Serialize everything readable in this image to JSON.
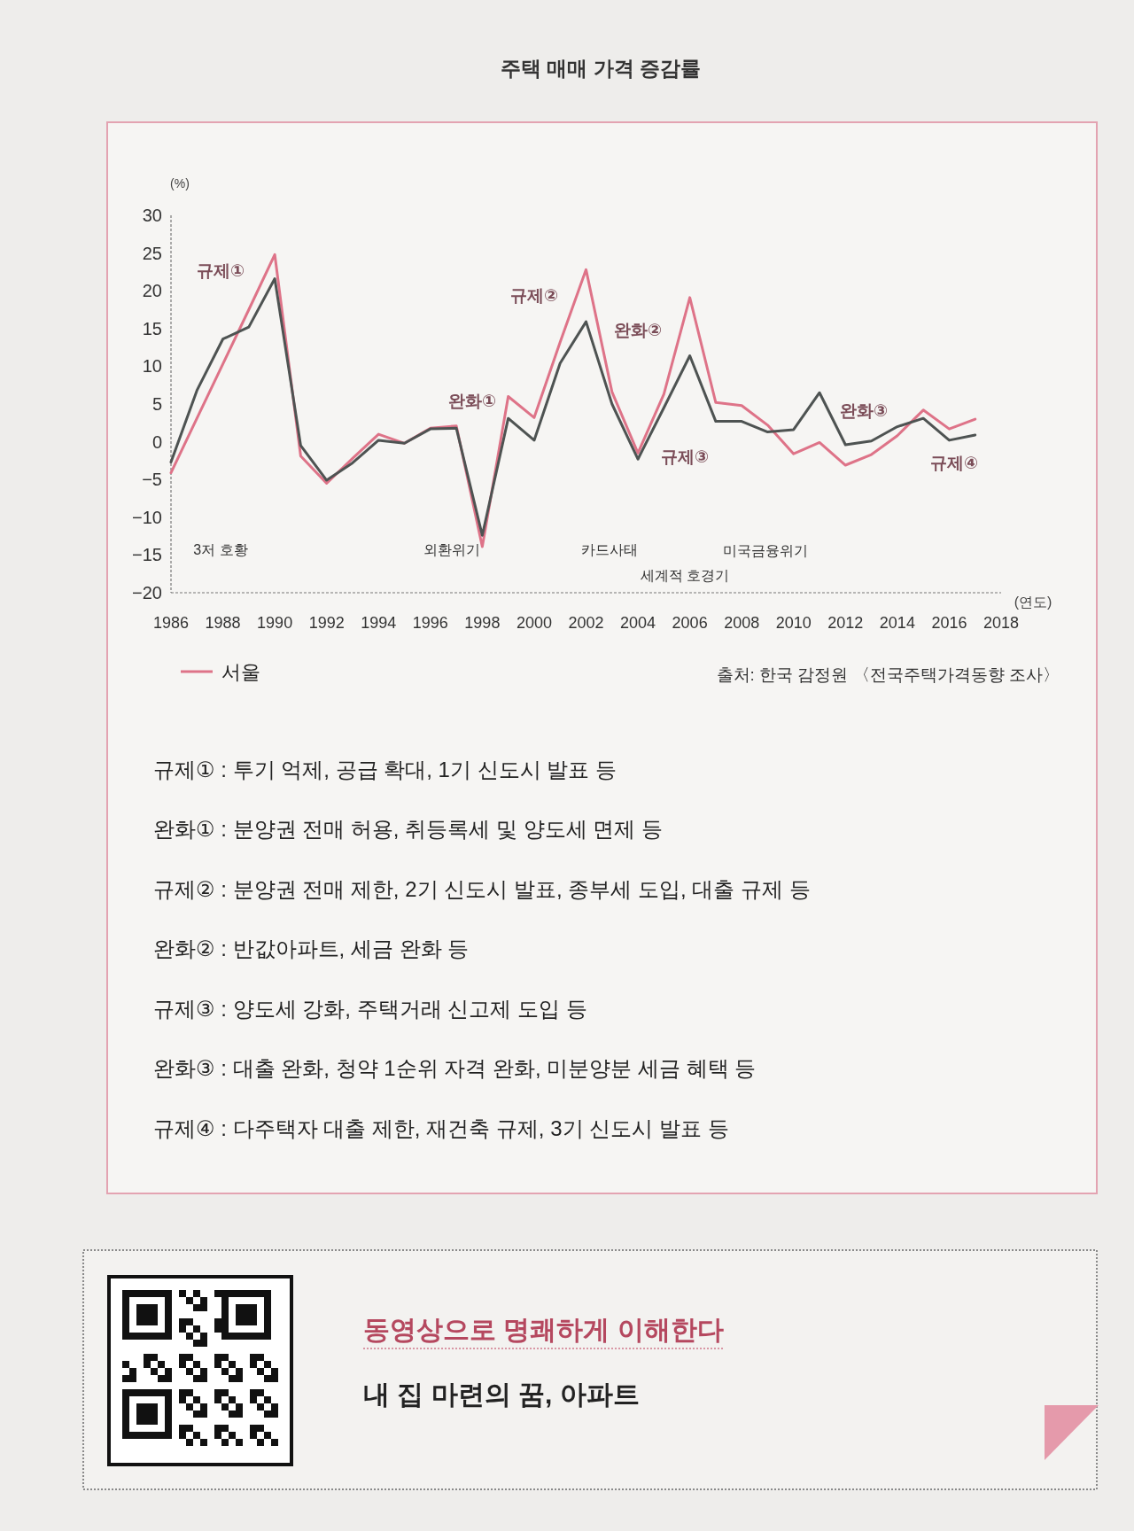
{
  "chart_data": {
    "type": "line",
    "title": "주택 매매 가격 증감률",
    "xlabel": "(연도)",
    "ylabel": "(%)",
    "x": [
      1986,
      1987,
      1988,
      1989,
      1990,
      1991,
      1992,
      1993,
      1994,
      1995,
      1996,
      1997,
      1998,
      1999,
      2000,
      2001,
      2002,
      2003,
      2004,
      2005,
      2006,
      2007,
      2008,
      2009,
      2010,
      2011,
      2012,
      2013,
      2014,
      2015,
      2016,
      2017
    ],
    "series": [
      {
        "name": "서울",
        "color": "#de7388",
        "values": [
          -4.1,
          3.1,
          10.3,
          17.5,
          24.8,
          -1.9,
          -5.5,
          -2.2,
          1.0,
          -0.2,
          1.8,
          2.1,
          -13.9,
          6.0,
          3.2,
          13.2,
          22.8,
          6.6,
          -1.5,
          6.3,
          19.1,
          5.2,
          4.8,
          2.2,
          -1.6,
          -0.1,
          -3.1,
          -1.7,
          0.8,
          4.2,
          1.7,
          3.0
        ]
      },
      {
        "color": "#4e5352",
        "values": [
          -2.7,
          6.8,
          13.6,
          15.2,
          21.6,
          -0.5,
          -5.1,
          -2.8,
          0.2,
          -0.2,
          1.7,
          1.8,
          -12.4,
          3.1,
          0.2,
          10.4,
          15.9,
          5.0,
          -2.3,
          4.5,
          11.4,
          2.7,
          2.7,
          1.3,
          1.6,
          6.5,
          -0.4,
          0.1,
          2.0,
          3.1,
          0.2,
          0.9
        ]
      }
    ],
    "xlim": [
      1986,
      2018
    ],
    "xticks": [
      1986,
      1988,
      1990,
      1992,
      1994,
      1996,
      1998,
      2000,
      2002,
      2004,
      2006,
      2008,
      2010,
      2012,
      2014,
      2016,
      2018
    ],
    "ylim": [
      -20,
      30
    ],
    "yticks": [
      -20,
      -15,
      -10,
      -5,
      0,
      5,
      10,
      15,
      20,
      25,
      30
    ],
    "legend": "bottom left",
    "annotations": [
      "규제①",
      "완화①",
      "규제②",
      "완화②",
      "규제③",
      "완화③",
      "규제④",
      "3저 호황",
      "외환위기",
      "카드사태",
      "세계적 호경기",
      "미국금융위기",
      "출처: 한국 감정원 〈전국주택가격동향 조사〉",
      "규제① : 투기 억제, 공급 확대, 1기 신도시 발표 등",
      "완화① : 분양권 전매 허용, 취등록세 및 양도세 면제 등",
      "규제② : 분양권 전매 제한, 2기 신도시 발표, 종부세 도입, 대출 규제 등",
      "완화② : 반값아파트, 세금 완화 등",
      "규제③ : 양도세 강화, 주택거래 신고제 도입 등",
      "완화③ : 대출 완화, 청약 1순위 자격 완화, 미분양분 세금 혜택 등",
      "규제④ : 다주택자 대출 제한, 재건축 규제, 3기 신도시 발표 등",
      "동영상으로 명쾌하게 이해한다",
      "내 집 마련의 꿈, 아파트"
    ]
  }
}
